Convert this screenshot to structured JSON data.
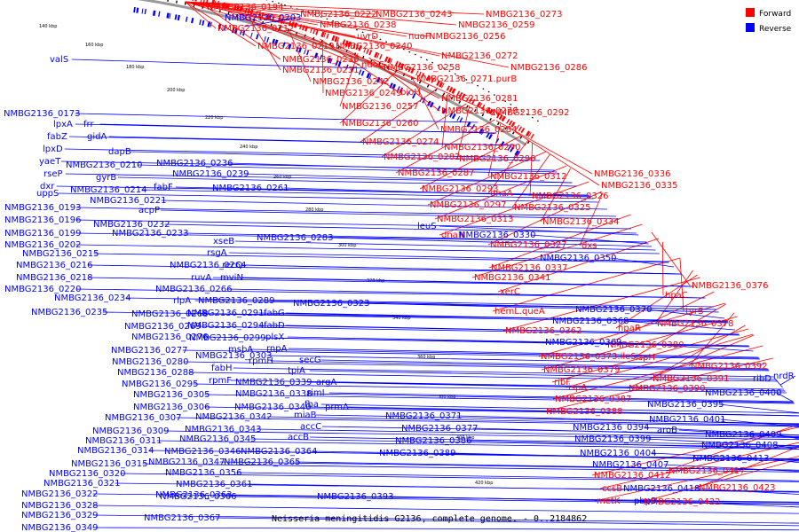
{
  "legend": {
    "forward_label": "Forward",
    "reverse_label": "Reverse",
    "forward_color": "#ff0000",
    "reverse_color": "#0000ff"
  },
  "caption": "Neisseria meningitidis G2136, complete genome. - 0..2184862",
  "backbone_color": "#999999",
  "ticks": [
    "140 kbp",
    "160 kbp",
    "180 kbp",
    "200 kbp",
    "220 kbp",
    "240 kbp",
    "260 kbp",
    "280 kbp",
    "300 kbp",
    "320 kbp",
    "340 kbp",
    "360 kbp",
    "380 kbp",
    "400 kbp",
    "420 kbp"
  ],
  "forward_labels": [
    "NMBG2136_0194",
    "NMBG2136_0222",
    "NMBG2136_0243",
    "NMBG2136_0273",
    "NMBG2136_0212",
    "NMBG2136_0238",
    "uvrD",
    "nuoF",
    "NMBG2136_0259",
    "NMBG2136_0256",
    "NMBG2136_0219",
    "NMBG2136_0240",
    "NMBG2136_0230",
    "NMBG2136_0272",
    "NMBG2136_0231",
    "nuoG",
    "NMBG2136_0258",
    "NMBG2136_0286",
    "NMBG2136_0242",
    "NMBG2136_0271.purB",
    "NMBG2136_0249",
    "bioH",
    "NMBG2136_0281",
    "NMBG2136_0257",
    "NMBG2136_0279",
    "NMBG2136_0292",
    "NMBG2136_0260",
    "NMBG2136_0284",
    "NMBG2136_0274",
    "NMBG2136_0290",
    "NMBG2136_0282",
    "NMBG2136_0296",
    "NMBG2136_0287",
    "NMBG2136_0312",
    "NMBG2136_0336",
    "NMBG2136_0293",
    "NMBG2136_0335",
    "dnaA",
    "NMBG2136_0326",
    "NMBG2136_0297",
    "NMBG2136_0325",
    "NMBG2136_0313",
    "NMBG2136_0334",
    "dnaN",
    "NMBG2136_0327",
    "dxs",
    "NMBG2136_0337",
    "NMBG2136_0341",
    "NMBG2136_0376",
    "xerC",
    "hpaC",
    "hemL.queA",
    "NMBG2136_0378",
    "tyrS",
    "NMBG2136_0362",
    "hpaR",
    "NMBG2136_0380",
    "NMBG2136_0373.ileS",
    "ispH",
    "NMBG2136_0379",
    "NMBG2136_0392",
    "ribF",
    "NMBG2136_0391",
    "ispA",
    "NMBG2136_0390",
    "NMBG2136_0387",
    "NMBG2136_0388",
    "NMBG2136_0417",
    "NMBG2136_0412",
    "ccsB",
    "NMBG2136_0423",
    "metK",
    "NMBG2136_0422"
  ],
  "reverse_labels": [
    "NMBG2136_0203",
    "valS",
    "NMBG2136_0173",
    "lpxA",
    "frr",
    "fabZ",
    "gidA",
    "lpxD",
    "yaeT",
    "dapB",
    "NMBG2136_0210",
    "rseP",
    "dxr",
    "gyrB",
    "uppS",
    "NMBG2136_0214",
    "NMBG2136_0236",
    "NMBG2136_0239",
    "fabF",
    "NMBG2136_0261",
    "NMBG2136_0193",
    "NMBG2136_0221",
    "NMBG2136_0196",
    "acpP",
    "NMBG2136_0232",
    "NMBG2136_0199",
    "NMBG2136_0233",
    "NMBG2136_0283",
    "NMBG2136_0202",
    "xseB",
    "rsgA",
    "NMBG2136_0215",
    "recQ",
    "NMBG2136_0264",
    "ruvA",
    "mviN",
    "NMBG2136_0216",
    "NMBG2136_0218",
    "NMBG2136_0266",
    "NMBG2136_0220",
    "rlpA",
    "NMBG2136_0289",
    "NMBG2136_0234",
    "NMBG2136_0323",
    "fabG",
    "NMBG2136_0235",
    "NMBG2136_0268",
    "NMBG2136_0291",
    "fabD",
    "NMBG2136_0269",
    "NMBG2136_0294",
    "plsX",
    "NMBG2136_0276",
    "NMBG2136_0299",
    "msbA",
    "NMBG2136_0277",
    "rnpA",
    "NMBG2136_0280",
    "NMBG2136_0303",
    "rpmH",
    "NMBG2136_0288",
    "secG",
    "fabH",
    "tpiA",
    "NMBG2136_0295",
    "rpmF",
    "NMBG2136_0339",
    "argA",
    "NMBG2136_0305",
    "NMBG2136_0338",
    "rimI",
    "NMBG2136_0306",
    "NMBG2136_0340",
    "fba",
    "prmA",
    "NMBG2136_0307",
    "NMBG2136_0342",
    "miaB",
    "NMBG2136_0309",
    "NMBG2136_0343",
    "accC",
    "NMBG2136_0311",
    "NMBG2136_0345",
    "accB",
    "NMBG2136_0314",
    "NMBG2136_0346",
    "NMBG2136_0364",
    "NMBG2136_0315",
    "NMBG2136_0347",
    "NMBG2136_0365",
    "NMBG2136_0320",
    "NMBG2136_0356",
    "NMBG2136_0321",
    "NMBG2136_0361",
    "NMBG2136_0322",
    "NMBG2136_0363",
    "NMBG2136_0328",
    "NMBG2136_0366",
    "NMBG2136_0329",
    "NMBG2136_0367",
    "NMBG2136_0349",
    "NMBG2136_0393",
    "NMBG2136_0371",
    "NMBG2136_0377",
    "NMBG2136_0386",
    "NMBG2136_0389",
    "NMBG2136_0330",
    "leuS",
    "NMBG2136_0350",
    "NMBG2136_0370",
    "NMBG2136_0368",
    "NMBG2136_0369",
    "NMBG2136_0395",
    "NMBG2136_0400",
    "ribD",
    "nrdR",
    "NMBG2136_0401",
    "NMBG2136_0394",
    "aroB",
    "NMBG2136_0409",
    "NMBG2136_0399",
    "NMBG2136_0408",
    "NMBG2136_0404",
    "NMBG2136_0413",
    "NMBG2136_0407",
    "NMBG2136_0418",
    "pbp3"
  ]
}
